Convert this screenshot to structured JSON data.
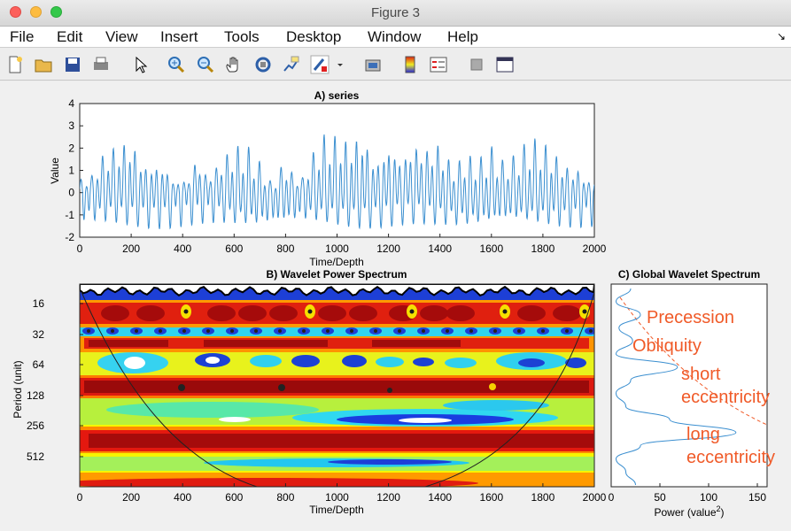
{
  "window": {
    "title": "Figure 3"
  },
  "menu": [
    "File",
    "Edit",
    "View",
    "Insert",
    "Tools",
    "Desktop",
    "Window",
    "Help"
  ],
  "toolbar_icons": [
    "new-file-icon",
    "open-folder-icon",
    "save-icon",
    "print-icon",
    "pointer-icon",
    "zoom-in-icon",
    "zoom-out-icon",
    "pan-hand-icon",
    "rotate-3d-icon",
    "data-cursor-icon",
    "brush-icon",
    "print-preview-icon",
    "colorbar-icon",
    "legend-icon",
    "hide-tools-icon",
    "dock-icon"
  ],
  "colors": {
    "series_line": "#3b8fd0",
    "annotation": "#f05a28",
    "plot_bg": "#ffffff",
    "figure_bg": "#f0f0f0"
  },
  "chart_data": [
    {
      "type": "line",
      "title": "A) series",
      "xlabel": "Time/Depth",
      "ylabel": "Value",
      "xlim": [
        0,
        2000
      ],
      "ylim": [
        -2,
        4
      ],
      "xticks": [
        "0",
        "200",
        "400",
        "600",
        "800",
        "1000",
        "1200",
        "1400",
        "1600",
        "1800",
        "2000"
      ],
      "yticks": [
        "-2",
        "-1",
        "0",
        "1",
        "2",
        "3",
        "4"
      ],
      "series": [
        {
          "x": [
            0,
            50,
            100,
            150,
            200,
            250,
            300,
            350,
            400,
            450,
            500,
            550,
            600,
            650,
            700,
            750,
            800,
            850,
            900,
            950,
            1000,
            1050,
            1100,
            1150,
            1200,
            1250,
            1300,
            1350,
            1400,
            1450,
            1500,
            1550,
            1600,
            1650,
            1700,
            1750,
            1800,
            1850,
            1900,
            1950,
            2000
          ],
          "y": [
            -0.5,
            0.8,
            1.9,
            2.2,
            2.6,
            1.4,
            1.5,
            1.2,
            -1.1,
            1.6,
            0.6,
            1.5,
            2.2,
            2.3,
            1.5,
            0.4,
            1.6,
            0.1,
            1.6,
            2.7,
            2.8,
            2.6,
            3.1,
            1.5,
            2.4,
            1.6,
            2.3,
            2.1,
            2.4,
            1.3,
            1.9,
            1.6,
            2.1,
            1.3,
            1.7,
            2.5,
            2.4,
            1.9,
            1.3,
            1.2,
            -0.9
          ]
        }
      ]
    },
    {
      "type": "heatmap",
      "title": "B) Wavelet Power Spectrum",
      "xlabel": "Time/Depth",
      "ylabel": "Period (unit)",
      "xlim": [
        0,
        2000
      ],
      "xticks": [
        "0",
        "200",
        "400",
        "600",
        "800",
        "1000",
        "1200",
        "1400",
        "1600",
        "1800",
        "2000"
      ],
      "yticks": [
        "16",
        "32",
        "64",
        "128",
        "256",
        "512"
      ],
      "cone_of_influence": true
    },
    {
      "type": "line",
      "title": "C) Global Wavelet Spectrum",
      "xlabel": "Power (value",
      "xlabel_sup": "2",
      "xlabel_end": ")",
      "xlim": [
        0,
        160
      ],
      "xticks": [
        "0",
        "50",
        "100",
        "150"
      ],
      "series": [
        {
          "x": [
            20,
            5,
            30,
            8,
            22,
            5,
            68,
            20,
            5,
            15,
            60,
            128,
            30,
            5,
            15,
            25
          ]
        }
      ],
      "annotations": [
        "Precession",
        "Obliquity",
        "short",
        "eccentricity",
        "long",
        "eccentricity"
      ]
    }
  ]
}
